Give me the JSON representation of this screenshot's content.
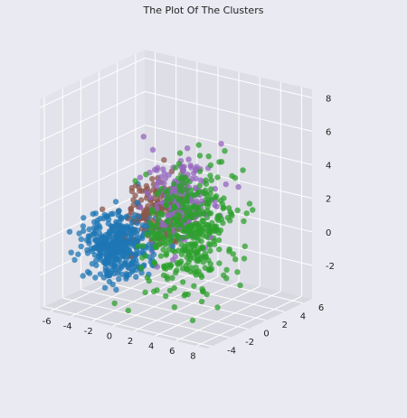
{
  "chart_data": {
    "type": "scatter",
    "projection": "3d",
    "title": "The Plot Of The Clusters",
    "xlabel": "",
    "ylabel": "",
    "zlabel": "",
    "xlim": [
      -7,
      9
    ],
    "ylim": [
      -4.5,
      7
    ],
    "zlim": [
      -4,
      8.5
    ],
    "x_ticks": [
      -6,
      -4,
      -2,
      0,
      2,
      4,
      6,
      8
    ],
    "y_ticks": [
      -4,
      -2,
      0,
      2,
      4,
      6
    ],
    "z_ticks": [
      -2,
      0,
      2,
      4,
      6,
      8
    ],
    "grid": true,
    "legend": "none",
    "background_color": "#eaeaf2",
    "pane_colors": [
      "#e3e3eb",
      "#dedee6",
      "#d8d8e0"
    ],
    "grid_color": "#ffffff",
    "series": [
      {
        "color": "#1f77b4",
        "center": [
          -2.5,
          -1.0,
          -0.5
        ],
        "spread": [
          1.3,
          1.1,
          0.9
        ],
        "count": 420,
        "seed": 11
      },
      {
        "color": "#8c564b",
        "center": [
          -1.0,
          1.5,
          1.0
        ],
        "spread": [
          1.2,
          1.1,
          0.9
        ],
        "count": 200,
        "seed": 23
      },
      {
        "color": "#9467bd",
        "center": [
          1.5,
          1.2,
          2.2
        ],
        "spread": [
          1.2,
          1.1,
          1.2
        ],
        "count": 220,
        "seed": 37
      },
      {
        "color": "#2ca02c",
        "center": [
          3.5,
          0.0,
          1.0
        ],
        "spread": [
          1.5,
          1.6,
          1.8
        ],
        "count": 430,
        "seed": 53
      }
    ]
  }
}
